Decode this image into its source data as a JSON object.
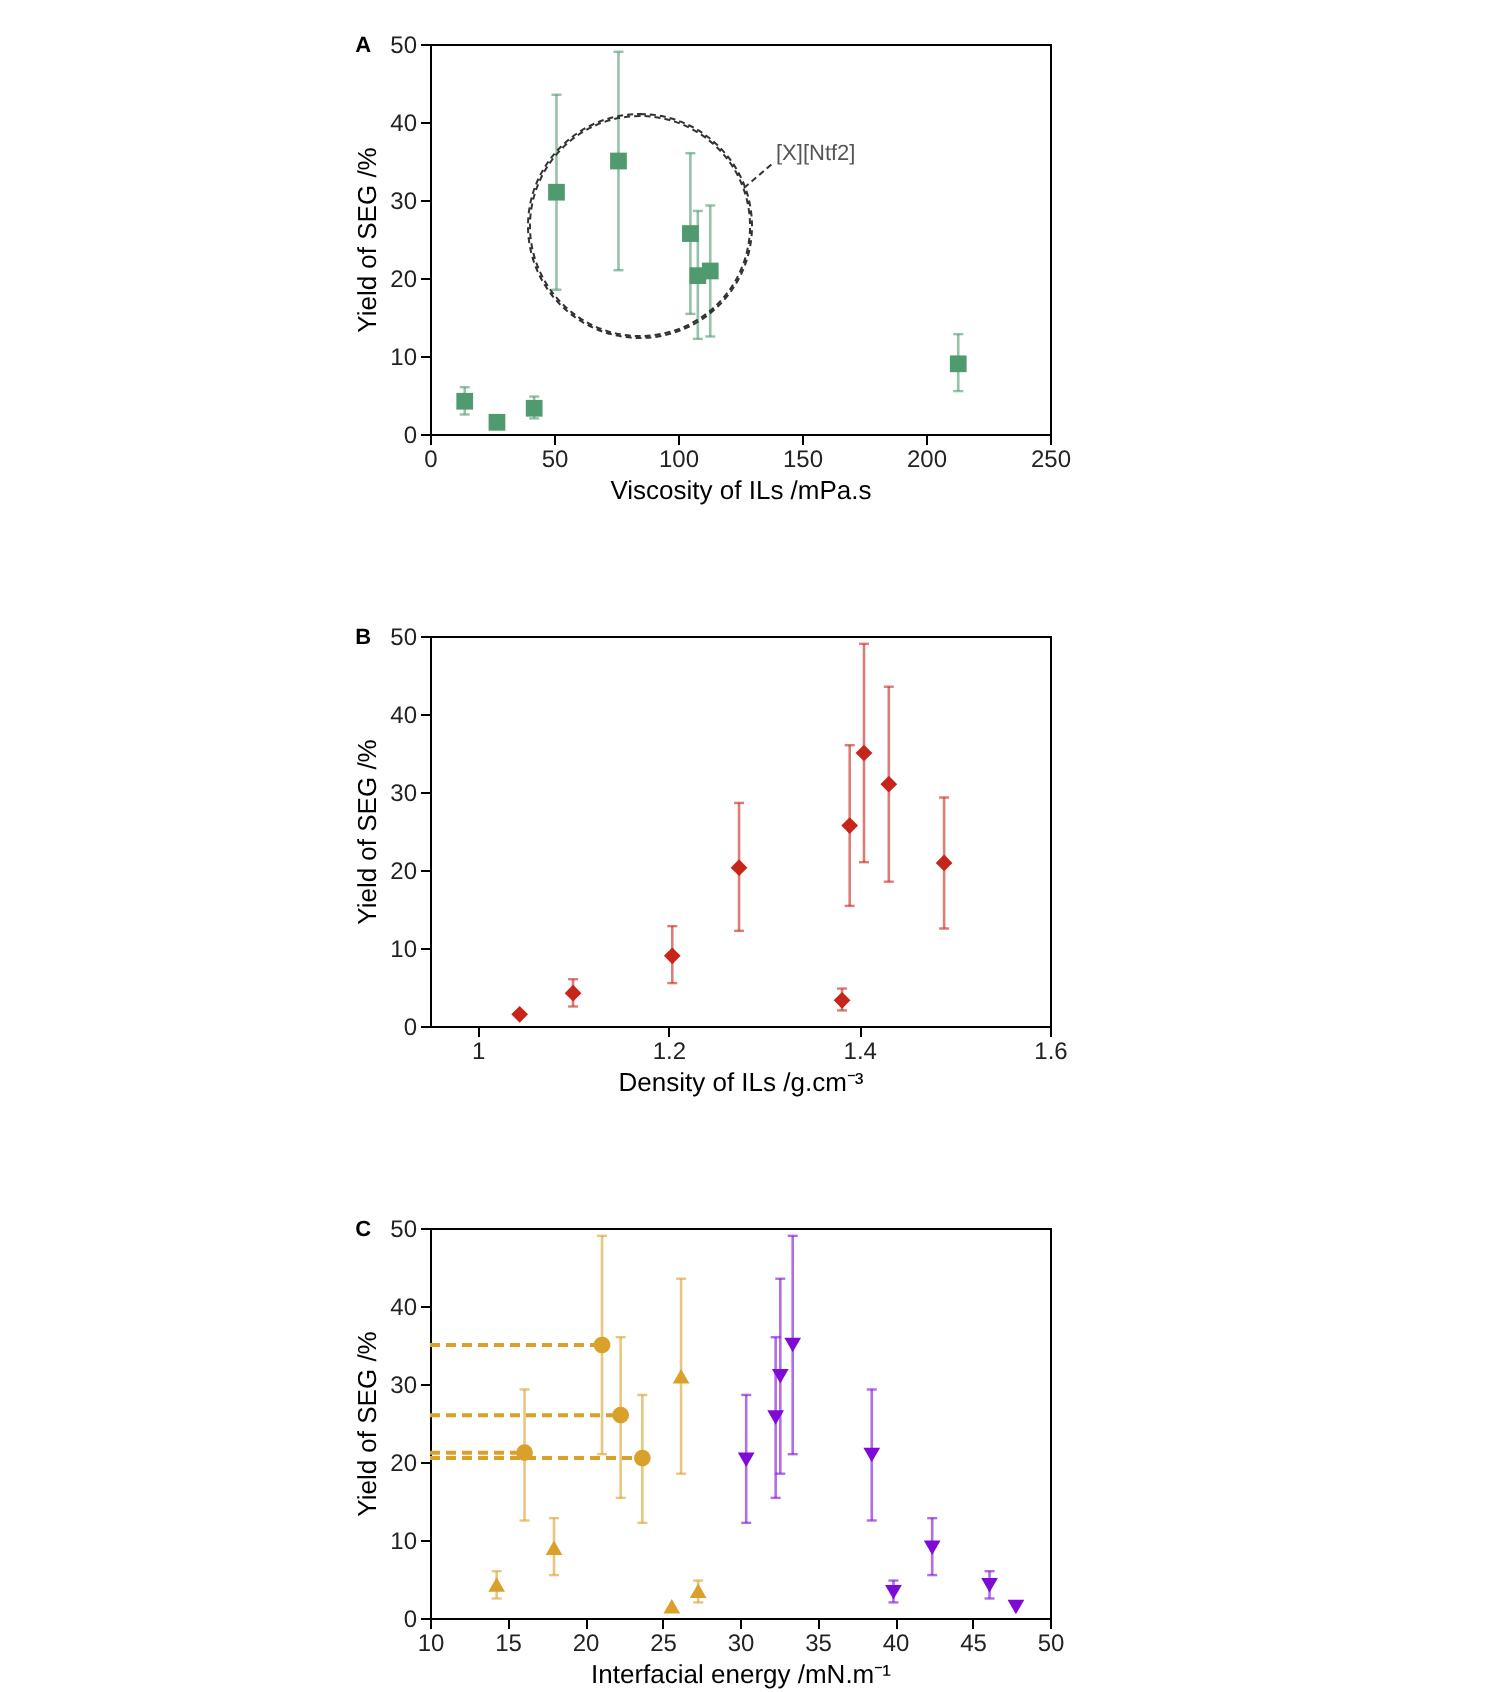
{
  "chart_data": [
    {
      "type": "scatter",
      "title": "A",
      "xlabel": "Viscosity of ILs /mPa.s",
      "ylabel": "Yield of SEG /%",
      "xlim": [
        0,
        250
      ],
      "xticks": [
        0,
        50,
        100,
        150,
        200,
        250
      ],
      "ylim": [
        0,
        50
      ],
      "yticks": [
        0,
        10,
        20,
        30,
        40,
        50
      ],
      "grid": false,
      "annotations": [
        "[X][Ntf2]"
      ],
      "series": [
        {
          "color": "#4f9a6e",
          "marker": "square",
          "x": [
            14,
            27,
            42,
            51,
            76,
            105,
            108,
            113,
            213
          ],
          "values": [
            4.2,
            1.5,
            3.3,
            31,
            35,
            25.7,
            20.3,
            20.9,
            9
          ],
          "errors": [
            [
              2.5,
              6
            ],
            null,
            [
              2,
              4.8
            ],
            [
              18.5,
              43.5
            ],
            [
              21,
              49
            ],
            [
              15.4,
              36
            ],
            [
              12.2,
              28.6
            ],
            [
              12.5,
              29.3
            ],
            [
              5.5,
              12.8
            ]
          ]
        }
      ]
    },
    {
      "type": "scatter",
      "title": "B",
      "xlabel": "Density of ILs /g.cm⁻³",
      "ylabel": "Yield of SEG /%",
      "xlim": [
        0.95,
        1.6
      ],
      "xticks": [
        1,
        1.2,
        1.4,
        1.6
      ],
      "ylim": [
        0,
        50
      ],
      "yticks": [
        0,
        10,
        20,
        30,
        40,
        50
      ],
      "grid": false,
      "series": [
        {
          "color": "#c8251a",
          "marker": "diamond",
          "x": [
            1.044,
            1.1,
            1.204,
            1.274,
            1.382,
            1.39,
            1.405,
            1.431,
            1.489
          ],
          "values": [
            1.5,
            4.2,
            9,
            20.3,
            3.3,
            25.7,
            35,
            31,
            20.9
          ],
          "errors": [
            null,
            [
              2.5,
              6
            ],
            [
              5.5,
              12.8
            ],
            [
              12.2,
              28.6
            ],
            [
              2,
              4.8
            ],
            [
              15.4,
              36
            ],
            [
              21,
              49
            ],
            [
              18.5,
              43.5
            ],
            [
              12.5,
              29.3
            ]
          ]
        }
      ]
    },
    {
      "type": "scatter",
      "title": "C",
      "xlabel": "Interfacial energy /mN.m⁻¹",
      "ylabel": "Yield of SEG /%",
      "xlim": [
        10,
        50
      ],
      "xticks": [
        10,
        15,
        20,
        25,
        30,
        35,
        40,
        45,
        50
      ],
      "ylim": [
        0,
        50
      ],
      "yticks": [
        0,
        10,
        20,
        30,
        40,
        50
      ],
      "grid": false,
      "series": [
        {
          "type": "line",
          "color": "#d9a02a",
          "line_style": "dashed",
          "marker": "none",
          "x": [
            10,
            21.1
          ],
          "values": [
            35,
            35
          ]
        },
        {
          "type": "line",
          "color": "#d9a02a",
          "line_style": "dashed",
          "marker": "none",
          "x": [
            10,
            22.3
          ],
          "values": [
            26,
            26
          ]
        },
        {
          "type": "line",
          "color": "#d9a02a",
          "line_style": "dashed",
          "marker": "none",
          "x": [
            10,
            16.1
          ],
          "values": [
            21.2,
            21.2
          ]
        },
        {
          "type": "line",
          "color": "#d9a02a",
          "line_style": "dashed",
          "marker": "none",
          "x": [
            10,
            23.7
          ],
          "values": [
            20.5,
            20.5
          ]
        },
        {
          "color": "#d9a02a",
          "marker": "circle",
          "x": [
            21.1,
            22.3,
            16.1,
            23.7
          ],
          "values": [
            35,
            26,
            21.2,
            20.5
          ],
          "errors": [
            [
              21,
              49
            ],
            [
              15.4,
              36
            ],
            [
              12.5,
              29.3
            ],
            [
              12.2,
              28.6
            ]
          ]
        },
        {
          "color": "#d9a02a",
          "marker": "triangle",
          "x": [
            14.3,
            18,
            26.2,
            25.6,
            27.3
          ],
          "values": [
            4.3,
            9,
            31,
            1.5,
            3.5
          ],
          "errors": [
            [
              2.5,
              6
            ],
            [
              5.5,
              12.8
            ],
            [
              18.5,
              43.5
            ],
            null,
            [
              2,
              4.8
            ]
          ]
        },
        {
          "color": "#7f0ad8",
          "marker": "triangle-down",
          "x": [
            30.4,
            32.3,
            32.6,
            33.4,
            38.5,
            39.9,
            42.4,
            46.1,
            47.8
          ],
          "values": [
            20.3,
            25.7,
            31,
            35,
            20.9,
            3.3,
            9,
            4.2,
            1.4
          ],
          "errors": [
            [
              12.2,
              28.6
            ],
            [
              15.4,
              36
            ],
            [
              18.5,
              43.5
            ],
            [
              21,
              49
            ],
            [
              12.5,
              29.3
            ],
            [
              2,
              4.8
            ],
            [
              5.5,
              12.8
            ],
            [
              2.5,
              6
            ],
            null
          ]
        }
      ]
    }
  ]
}
